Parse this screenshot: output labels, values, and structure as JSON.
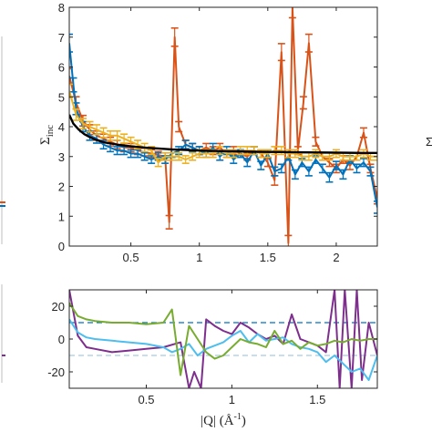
{
  "chart_data": [
    {
      "type": "line",
      "ylabel_main": "Σ",
      "ylabel_sub": "inc",
      "xlim": [
        0.05,
        2.3
      ],
      "ylim": [
        0,
        8
      ],
      "xticks": [
        0.5,
        1,
        1.5,
        2
      ],
      "xtick_labels": [
        "0.5",
        "1",
        "1.5",
        "2"
      ],
      "yticks": [
        0,
        1,
        2,
        3,
        4,
        5,
        6,
        7,
        8
      ],
      "ytick_labels": [
        "0",
        "1",
        "2",
        "3",
        "4",
        "5",
        "6",
        "7",
        "8"
      ],
      "grid": false,
      "series": [
        {
          "color": "#d95319",
          "error_bars": true,
          "x": [
            0.05,
            0.1,
            0.15,
            0.2,
            0.25,
            0.3,
            0.35,
            0.4,
            0.45,
            0.5,
            0.55,
            0.6,
            0.65,
            0.7,
            0.75,
            0.78,
            0.82,
            0.85,
            0.9,
            0.95,
            1.0,
            1.05,
            1.1,
            1.15,
            1.2,
            1.25,
            1.3,
            1.35,
            1.4,
            1.45,
            1.5,
            1.55,
            1.6,
            1.65,
            1.68,
            1.72,
            1.76,
            1.8,
            1.85,
            1.9,
            1.95,
            2.0,
            2.05,
            2.1,
            2.15,
            2.2,
            2.25,
            2.3
          ],
          "y": [
            5.7,
            4.8,
            4.2,
            3.9,
            3.7,
            3.6,
            3.5,
            3.4,
            3.3,
            3.3,
            3.2,
            3.15,
            3.1,
            3.05,
            3.0,
            0.8,
            7.0,
            4.0,
            3.4,
            3.3,
            3.2,
            3.3,
            3.2,
            3.3,
            3.1,
            3.2,
            3.1,
            3.0,
            3.2,
            3.1,
            2.8,
            2.2,
            6.5,
            0.1,
            8.0,
            3.2,
            4.8,
            6.8,
            3.5,
            3.0,
            2.8,
            2.6,
            2.9,
            2.7,
            3.0,
            3.8,
            2.6,
            1.6
          ]
        },
        {
          "color": "#0072bd",
          "error_bars": true,
          "x": [
            0.05,
            0.08,
            0.1,
            0.15,
            0.2,
            0.25,
            0.3,
            0.35,
            0.4,
            0.45,
            0.5,
            0.55,
            0.6,
            0.65,
            0.7,
            0.75,
            0.8,
            0.85,
            0.9,
            0.95,
            1.0,
            1.05,
            1.1,
            1.15,
            1.2,
            1.25,
            1.3,
            1.35,
            1.4,
            1.45,
            1.5,
            1.55,
            1.6,
            1.65,
            1.7,
            1.75,
            1.8,
            1.85,
            1.9,
            1.95,
            2.0,
            2.05,
            2.1,
            2.15,
            2.2,
            2.25,
            2.3
          ],
          "y": [
            6.8,
            5.4,
            4.6,
            4.0,
            3.7,
            3.6,
            3.4,
            3.3,
            3.2,
            3.2,
            3.1,
            3.1,
            3.0,
            2.9,
            3.0,
            2.9,
            3.1,
            3.2,
            3.4,
            3.3,
            3.2,
            3.1,
            3.3,
            3.0,
            3.2,
            2.9,
            3.1,
            2.8,
            3.2,
            2.7,
            3.1,
            2.5,
            2.6,
            3.0,
            2.4,
            2.8,
            2.5,
            2.9,
            2.6,
            2.3,
            2.7,
            2.4,
            2.9,
            2.6,
            2.8,
            2.5,
            1.3
          ]
        },
        {
          "color": "#edb120",
          "error_bars": true,
          "x": [
            0.05,
            0.1,
            0.15,
            0.2,
            0.25,
            0.3,
            0.35,
            0.4,
            0.45,
            0.5,
            0.55,
            0.6,
            0.65,
            0.7,
            0.75,
            0.8,
            0.85,
            0.9,
            0.95,
            1.0,
            1.05,
            1.1,
            1.15,
            1.2,
            1.25,
            1.3,
            1.35,
            1.4,
            1.45,
            1.5,
            1.55,
            1.6,
            1.65,
            1.7,
            1.75,
            1.8,
            1.85,
            1.9,
            1.95,
            2.0,
            2.05,
            2.1,
            2.15,
            2.2,
            2.25,
            2.3
          ],
          "y": [
            5.2,
            4.4,
            4.1,
            4.0,
            3.9,
            3.8,
            3.7,
            3.7,
            3.6,
            3.5,
            3.4,
            3.3,
            3.2,
            2.8,
            3.0,
            3.0,
            3.0,
            2.9,
            3.0,
            3.1,
            3.1,
            3.1,
            3.2,
            3.1,
            3.1,
            3.2,
            3.2,
            3.2,
            3.1,
            3.1,
            3.2,
            3.2,
            3.1,
            3.1,
            3.0,
            3.0,
            3.1,
            3.0,
            3.0,
            3.1,
            3.0,
            3.0,
            3.0,
            3.1,
            3.0,
            3.0
          ]
        },
        {
          "color": "#000000",
          "error_bars": false,
          "x": [
            0.05,
            0.08,
            0.12,
            0.16,
            0.2,
            0.25,
            0.3,
            0.4,
            0.5,
            0.6,
            0.7,
            0.8,
            0.9,
            1.0,
            1.2,
            1.4,
            1.6,
            1.8,
            2.0,
            2.2,
            2.3
          ],
          "y": [
            4.4,
            4.1,
            3.9,
            3.75,
            3.65,
            3.55,
            3.48,
            3.4,
            3.34,
            3.3,
            3.27,
            3.24,
            3.22,
            3.2,
            3.18,
            3.16,
            3.15,
            3.14,
            3.13,
            3.12,
            3.12
          ]
        }
      ]
    },
    {
      "type": "line",
      "xlabel": "|Q| (Å",
      "xlabel_sup": "-1",
      "xlabel_end": ")",
      "xlim": [
        0.05,
        1.85
      ],
      "ylim": [
        -30,
        30
      ],
      "xticks": [
        0.5,
        1,
        1.5
      ],
      "xtick_labels": [
        "0.5",
        "1",
        "1.5"
      ],
      "yticks": [
        -20,
        0,
        20
      ],
      "ytick_labels": [
        "-20",
        "0",
        "20"
      ],
      "grid": false,
      "reference_lines": [
        {
          "y": 10,
          "color": "#0072bd",
          "style": "dashed"
        },
        {
          "y": -10,
          "color": "#a6cbe0",
          "style": "dashed"
        }
      ],
      "series": [
        {
          "color": "#7e2f8e",
          "x": [
            0.05,
            0.1,
            0.15,
            0.2,
            0.3,
            0.4,
            0.5,
            0.6,
            0.7,
            0.75,
            0.78,
            0.82,
            0.85,
            0.9,
            0.95,
            1.0,
            1.05,
            1.1,
            1.15,
            1.2,
            1.25,
            1.3,
            1.35,
            1.4,
            1.45,
            1.5,
            1.55,
            1.6,
            1.63,
            1.66,
            1.7,
            1.73,
            1.76,
            1.8,
            1.85
          ],
          "y": [
            30,
            2,
            -5,
            -6,
            -8,
            -7,
            -6,
            -5,
            -2,
            -30,
            -20,
            -30,
            12,
            8,
            5,
            3,
            10,
            7,
            3,
            0,
            2,
            -3,
            15,
            0,
            -2,
            -4,
            -8,
            30,
            -30,
            30,
            -30,
            30,
            -25,
            10,
            -10
          ]
        },
        {
          "color": "#4dbeee",
          "x": [
            0.05,
            0.1,
            0.15,
            0.2,
            0.3,
            0.4,
            0.5,
            0.6,
            0.65,
            0.7,
            0.75,
            0.8,
            0.85,
            0.9,
            0.95,
            1.0,
            1.05,
            1.1,
            1.15,
            1.2,
            1.25,
            1.3,
            1.35,
            1.4,
            1.45,
            1.5,
            1.55,
            1.6,
            1.65,
            1.7,
            1.75,
            1.8,
            1.85
          ],
          "y": [
            12,
            4,
            1,
            0,
            -1,
            -2,
            -3,
            -5,
            -8,
            -6,
            -3,
            -10,
            -6,
            -4,
            -2,
            2,
            5,
            -2,
            3,
            -1,
            0,
            1,
            -3,
            -5,
            -6,
            -8,
            -14,
            -10,
            -15,
            -20,
            -18,
            -25,
            -10
          ]
        },
        {
          "color": "#77ac30",
          "x": [
            0.05,
            0.1,
            0.15,
            0.2,
            0.3,
            0.4,
            0.5,
            0.6,
            0.65,
            0.7,
            0.75,
            0.8,
            0.85,
            0.9,
            0.95,
            1.0,
            1.05,
            1.1,
            1.15,
            1.2,
            1.25,
            1.3,
            1.35,
            1.4,
            1.45,
            1.5,
            1.55,
            1.6,
            1.65,
            1.7,
            1.75,
            1.8,
            1.85
          ],
          "y": [
            22,
            14,
            12,
            11,
            10,
            10,
            9,
            10,
            18,
            -22,
            8,
            0,
            -8,
            -12,
            -10,
            -5,
            0,
            -2,
            -3,
            -5,
            5,
            -3,
            -1,
            -6,
            -2,
            -4,
            -3,
            -1,
            -2,
            0,
            -1,
            0,
            0
          ]
        }
      ]
    }
  ]
}
